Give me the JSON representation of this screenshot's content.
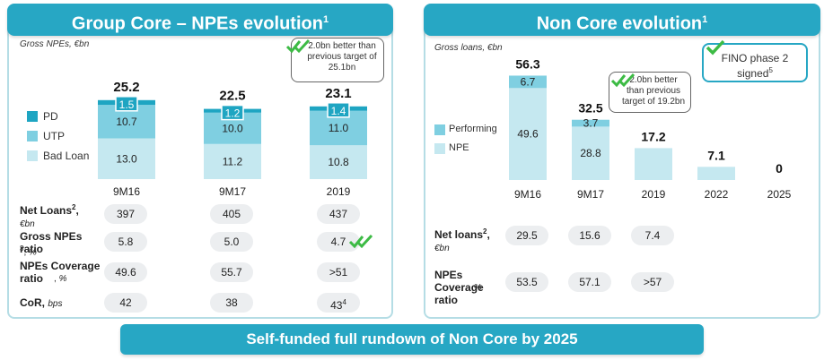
{
  "left": {
    "title": "Group Core – NPEs evolution",
    "title_sup": "1",
    "unit": "Gross NPEs, €bn",
    "callout": "2.0bn better than previous target of 25.1bn",
    "legend": [
      "PD",
      "UTP",
      "Bad Loan"
    ],
    "colors": {
      "pd": "#1ea5c2",
      "utp": "#7fcfe1",
      "bad": "#c5e8f0"
    },
    "metrics": [
      {
        "label": "Net Loans",
        "sup": "2",
        "sep": ",",
        "unit": "€bn",
        "values": [
          "397",
          "405",
          "437"
        ]
      },
      {
        "label": "Gross NPEs ratio",
        "sup": "3",
        "sep": ",",
        "unit": "%",
        "values": [
          "5.8",
          "5.0",
          "4.7"
        ]
      },
      {
        "label": "NPEs Coverage ratio",
        "sup": "",
        "sep": ",",
        "unit": "%",
        "values": [
          "49.6",
          "55.7",
          ">51"
        ]
      },
      {
        "label": "CoR",
        "sup": "",
        "sep": ",",
        "unit": "bps",
        "values": [
          "42",
          "38",
          "43"
        ],
        "last_sup": "4"
      }
    ]
  },
  "right": {
    "title": "Non Core evolution",
    "title_sup": "1",
    "unit": "Gross loans, €bn",
    "callout": "2.0bn better than previous target of 19.2bn",
    "fino": {
      "line1": "FINO phase 2",
      "line2": "signed",
      "sup": "5"
    },
    "legend": [
      "Performing",
      "NPE"
    ],
    "colors": {
      "perf": "#7fcfe1",
      "npe": "#c5e8f0"
    },
    "metrics": [
      {
        "label": "Net loans",
        "sup": "2",
        "sep": ",",
        "unit": "€bn",
        "values": [
          "29.5",
          "15.6",
          "7.4"
        ]
      },
      {
        "label": "NPEs Coverage ratio",
        "sup": "",
        "sep": ",",
        "unit": "%",
        "values": [
          "53.5",
          "57.1",
          ">57"
        ]
      }
    ]
  },
  "footer": "Self-funded full rundown of Non Core by 2025",
  "chart_data": [
    {
      "type": "bar",
      "title": "Group Core – NPEs evolution",
      "ylabel": "Gross NPEs, €bn",
      "categories": [
        "9M16",
        "9M17",
        "2019"
      ],
      "stacked": true,
      "series": [
        {
          "name": "Bad Loan",
          "values": [
            13.0,
            11.2,
            10.8
          ]
        },
        {
          "name": "UTP",
          "values": [
            10.7,
            10.0,
            11.0
          ]
        },
        {
          "name": "PD",
          "values": [
            1.5,
            1.2,
            1.4
          ]
        }
      ],
      "totals": [
        25.2,
        22.5,
        23.1
      ],
      "ylim": [
        0,
        30
      ]
    },
    {
      "type": "bar",
      "title": "Non Core evolution",
      "ylabel": "Gross loans, €bn",
      "categories": [
        "9M16",
        "9M17",
        "2019",
        "2022",
        "2025"
      ],
      "stacked": true,
      "series": [
        {
          "name": "NPE",
          "values": [
            49.6,
            28.8,
            17.2,
            7.1,
            0
          ]
        },
        {
          "name": "Performing",
          "values": [
            6.7,
            3.7,
            0,
            0,
            0
          ]
        }
      ],
      "totals": [
        56.3,
        32.5,
        17.2,
        7.1,
        0
      ],
      "ylim": [
        0,
        60
      ]
    }
  ]
}
